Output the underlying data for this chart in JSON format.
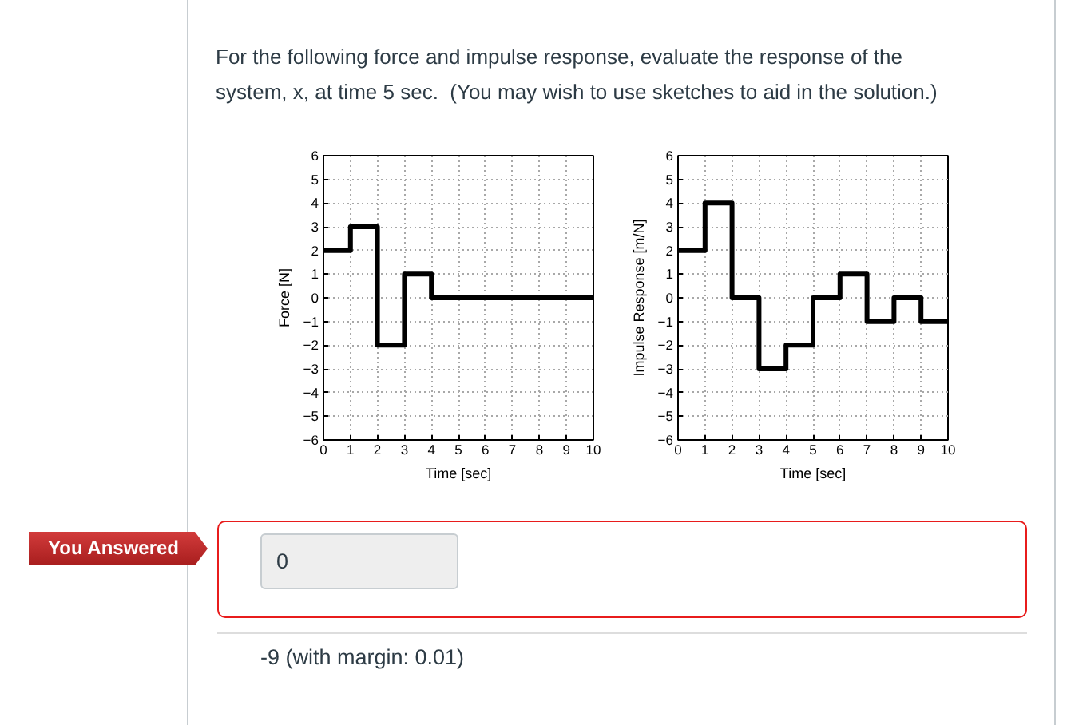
{
  "chart_data": [
    {
      "type": "step",
      "title": "For the following force and impulse response, evaluate the response of the system, x, at time 5 sec.  (You may wish to use sketches to aid in the solution.)",
      "x": [
        0,
        1,
        2,
        3,
        4,
        10
      ],
      "values": [
        2,
        3,
        -2,
        1,
        0,
        0
      ],
      "color": "#000000",
      "xlim": [
        0,
        10
      ],
      "ylim": [
        -6,
        6
      ],
      "xticks": [
        0,
        1,
        2,
        3,
        4,
        5,
        6,
        7,
        8,
        9,
        10
      ],
      "yticks": [
        -6,
        -5,
        -4,
        -3,
        -2,
        -1,
        0,
        1,
        2,
        3,
        4,
        5,
        6
      ],
      "xlabel": "Time [sec]",
      "ylabel": "Force [N]",
      "grid": true,
      "annotations": [
        "You Answered",
        "0",
        "-9 (with margin: 0.01)"
      ]
    },
    {
      "type": "step",
      "x": [
        0,
        1,
        2,
        3,
        4,
        5,
        6,
        7,
        8,
        9,
        10
      ],
      "values": [
        2,
        4,
        0,
        -3,
        -2,
        0,
        1,
        -1,
        0,
        -1,
        -1
      ],
      "color": "#000000",
      "xlim": [
        0,
        10
      ],
      "ylim": [
        -6,
        6
      ],
      "xticks": [
        0,
        1,
        2,
        3,
        4,
        5,
        6,
        7,
        8,
        9,
        10
      ],
      "yticks": [
        -6,
        -5,
        -4,
        -3,
        -2,
        -1,
        0,
        1,
        2,
        3,
        4,
        5,
        6
      ],
      "xlabel": "Time [sec]",
      "ylabel": "Impulse Response [m/N]",
      "grid": true
    }
  ]
}
